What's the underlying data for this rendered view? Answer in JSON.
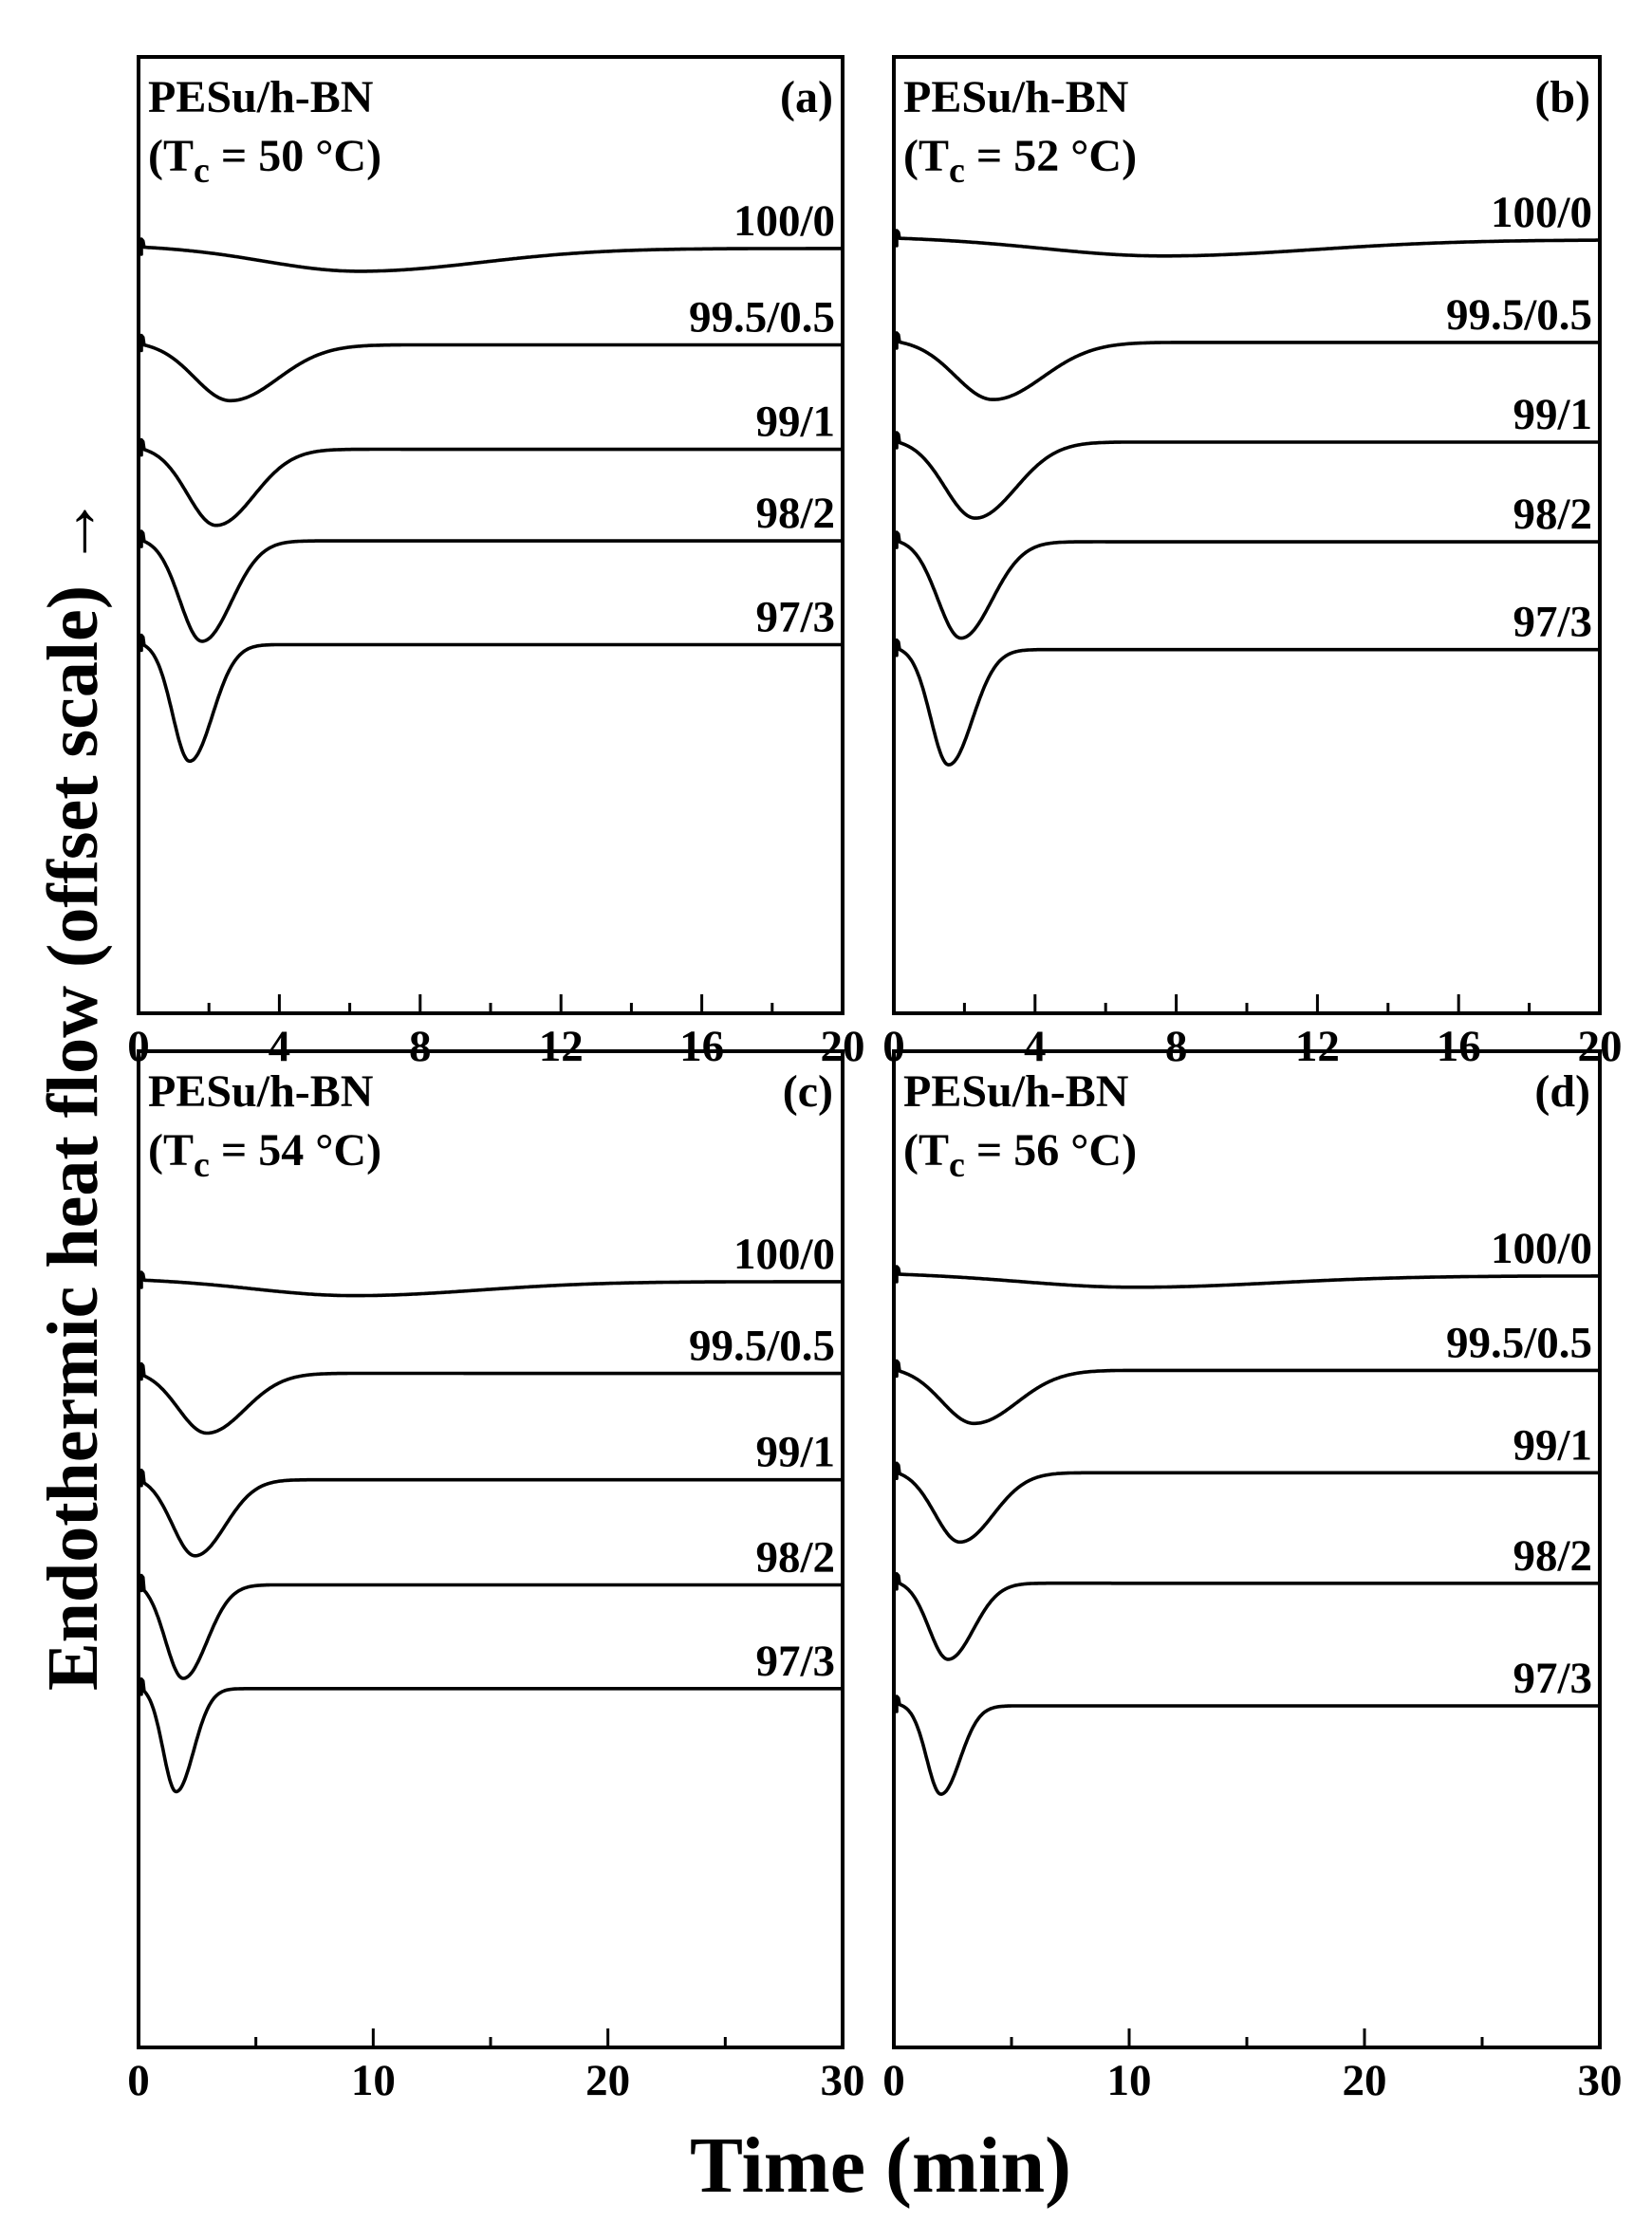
{
  "figure": {
    "ylabel": "Endothermic heat flow (offset scale) →",
    "xlabel": "Time (min)"
  },
  "chart_data": [
    {
      "type": "line",
      "panel_id": "(a)",
      "title_line1": "PESu/h-BN",
      "title_line2_prefix": "(T",
      "title_line2_sub": "c",
      "title_line2_suffix": " = 50 °C)",
      "xlim": [
        0,
        20
      ],
      "xticks": [
        "0",
        "4",
        "8",
        "12",
        "16",
        "20"
      ],
      "xtick_values": [
        0,
        4,
        8,
        12,
        16,
        20
      ],
      "minor_step": 2,
      "y_units": "offset scale (no tick labels)",
      "series": [
        {
          "name": "100/0",
          "baseline_offset": 0.0,
          "peak_time": 6.2,
          "peak_depth": 0.175,
          "peak_width": 2.6
        },
        {
          "name": "99.5/0.5",
          "baseline_offset": -0.715,
          "peak_time": 2.6,
          "peak_depth": 0.42,
          "peak_width": 1.0
        },
        {
          "name": "99/1",
          "baseline_offset": -1.49,
          "peak_time": 2.2,
          "peak_depth": 0.57,
          "peak_width": 0.8
        },
        {
          "name": "98/2",
          "baseline_offset": -2.17,
          "peak_time": 1.8,
          "peak_depth": 0.75,
          "peak_width": 0.62
        },
        {
          "name": "97/3",
          "baseline_offset": -2.94,
          "peak_time": 1.45,
          "peak_depth": 0.87,
          "peak_width": 0.48
        }
      ]
    },
    {
      "type": "line",
      "panel_id": "(b)",
      "title_line1": "PESu/h-BN",
      "title_line2_prefix": "(T",
      "title_line2_sub": "c",
      "title_line2_suffix": " = 52 °C)",
      "xlim": [
        0,
        20
      ],
      "xticks": [
        "0",
        "4",
        "8",
        "12",
        "16",
        "20"
      ],
      "xtick_values": [
        0,
        4,
        8,
        12,
        16,
        20
      ],
      "minor_step": 2,
      "y_units": "offset scale (no tick labels)",
      "series": [
        {
          "name": "100/0",
          "baseline_offset": 0.0,
          "peak_time": 7.5,
          "peak_depth": 0.125,
          "peak_width": 3.2
        },
        {
          "name": "99.5/0.5",
          "baseline_offset": -0.76,
          "peak_time": 2.8,
          "peak_depth": 0.43,
          "peak_width": 1.05
        },
        {
          "name": "99/1",
          "baseline_offset": -1.5,
          "peak_time": 2.3,
          "peak_depth": 0.57,
          "peak_width": 0.85
        },
        {
          "name": "98/2",
          "baseline_offset": -2.24,
          "peak_time": 1.9,
          "peak_depth": 0.72,
          "peak_width": 0.65
        },
        {
          "name": "97/3",
          "baseline_offset": -3.04,
          "peak_time": 1.55,
          "peak_depth": 0.86,
          "peak_width": 0.5
        }
      ]
    },
    {
      "type": "line",
      "panel_id": "(c)",
      "title_line1": "PESu/h-BN",
      "title_line2_prefix": "(T",
      "title_line2_sub": "c",
      "title_line2_suffix": " = 54 °C)",
      "xlim": [
        0,
        30
      ],
      "xticks": [
        "0",
        "10",
        "20",
        "30"
      ],
      "xtick_values": [
        0,
        10,
        20,
        30
      ],
      "minor_step": 5,
      "y_units": "offset scale (no tick labels)",
      "series": [
        {
          "name": "100/0",
          "baseline_offset": 0.0,
          "peak_time": 9.0,
          "peak_depth": 0.11,
          "peak_width": 4.0
        },
        {
          "name": "99.5/0.5",
          "baseline_offset": -0.68,
          "peak_time": 2.9,
          "peak_depth": 0.45,
          "peak_width": 1.2
        },
        {
          "name": "99/1",
          "baseline_offset": -1.47,
          "peak_time": 2.4,
          "peak_depth": 0.57,
          "peak_width": 0.95
        },
        {
          "name": "98/2",
          "baseline_offset": -2.25,
          "peak_time": 1.9,
          "peak_depth": 0.7,
          "peak_width": 0.75
        },
        {
          "name": "97/3",
          "baseline_offset": -3.02,
          "peak_time": 1.6,
          "peak_depth": 0.77,
          "peak_width": 0.55
        }
      ]
    },
    {
      "type": "line",
      "panel_id": "(d)",
      "title_line1": "PESu/h-BN",
      "title_line2_prefix": "(T",
      "title_line2_sub": "c",
      "title_line2_suffix": " = 56 °C)",
      "xlim": [
        0,
        30
      ],
      "xticks": [
        "0",
        "10",
        "20",
        "30"
      ],
      "xtick_values": [
        0,
        10,
        20,
        30
      ],
      "minor_step": 5,
      "y_units": "offset scale (no tick labels)",
      "series": [
        {
          "name": "100/0",
          "baseline_offset": 0.0,
          "peak_time": 10.0,
          "peak_depth": 0.09,
          "peak_width": 4.5
        },
        {
          "name": "99.5/0.5",
          "baseline_offset": -0.7,
          "peak_time": 3.4,
          "peak_depth": 0.4,
          "peak_width": 1.35
        },
        {
          "name": "99/1",
          "baseline_offset": -1.46,
          "peak_time": 2.8,
          "peak_depth": 0.52,
          "peak_width": 1.05
        },
        {
          "name": "98/2",
          "baseline_offset": -2.28,
          "peak_time": 2.3,
          "peak_depth": 0.57,
          "peak_width": 0.8
        },
        {
          "name": "97/3",
          "baseline_offset": -3.19,
          "peak_time": 2.0,
          "peak_depth": 0.66,
          "peak_width": 0.6
        }
      ]
    }
  ]
}
